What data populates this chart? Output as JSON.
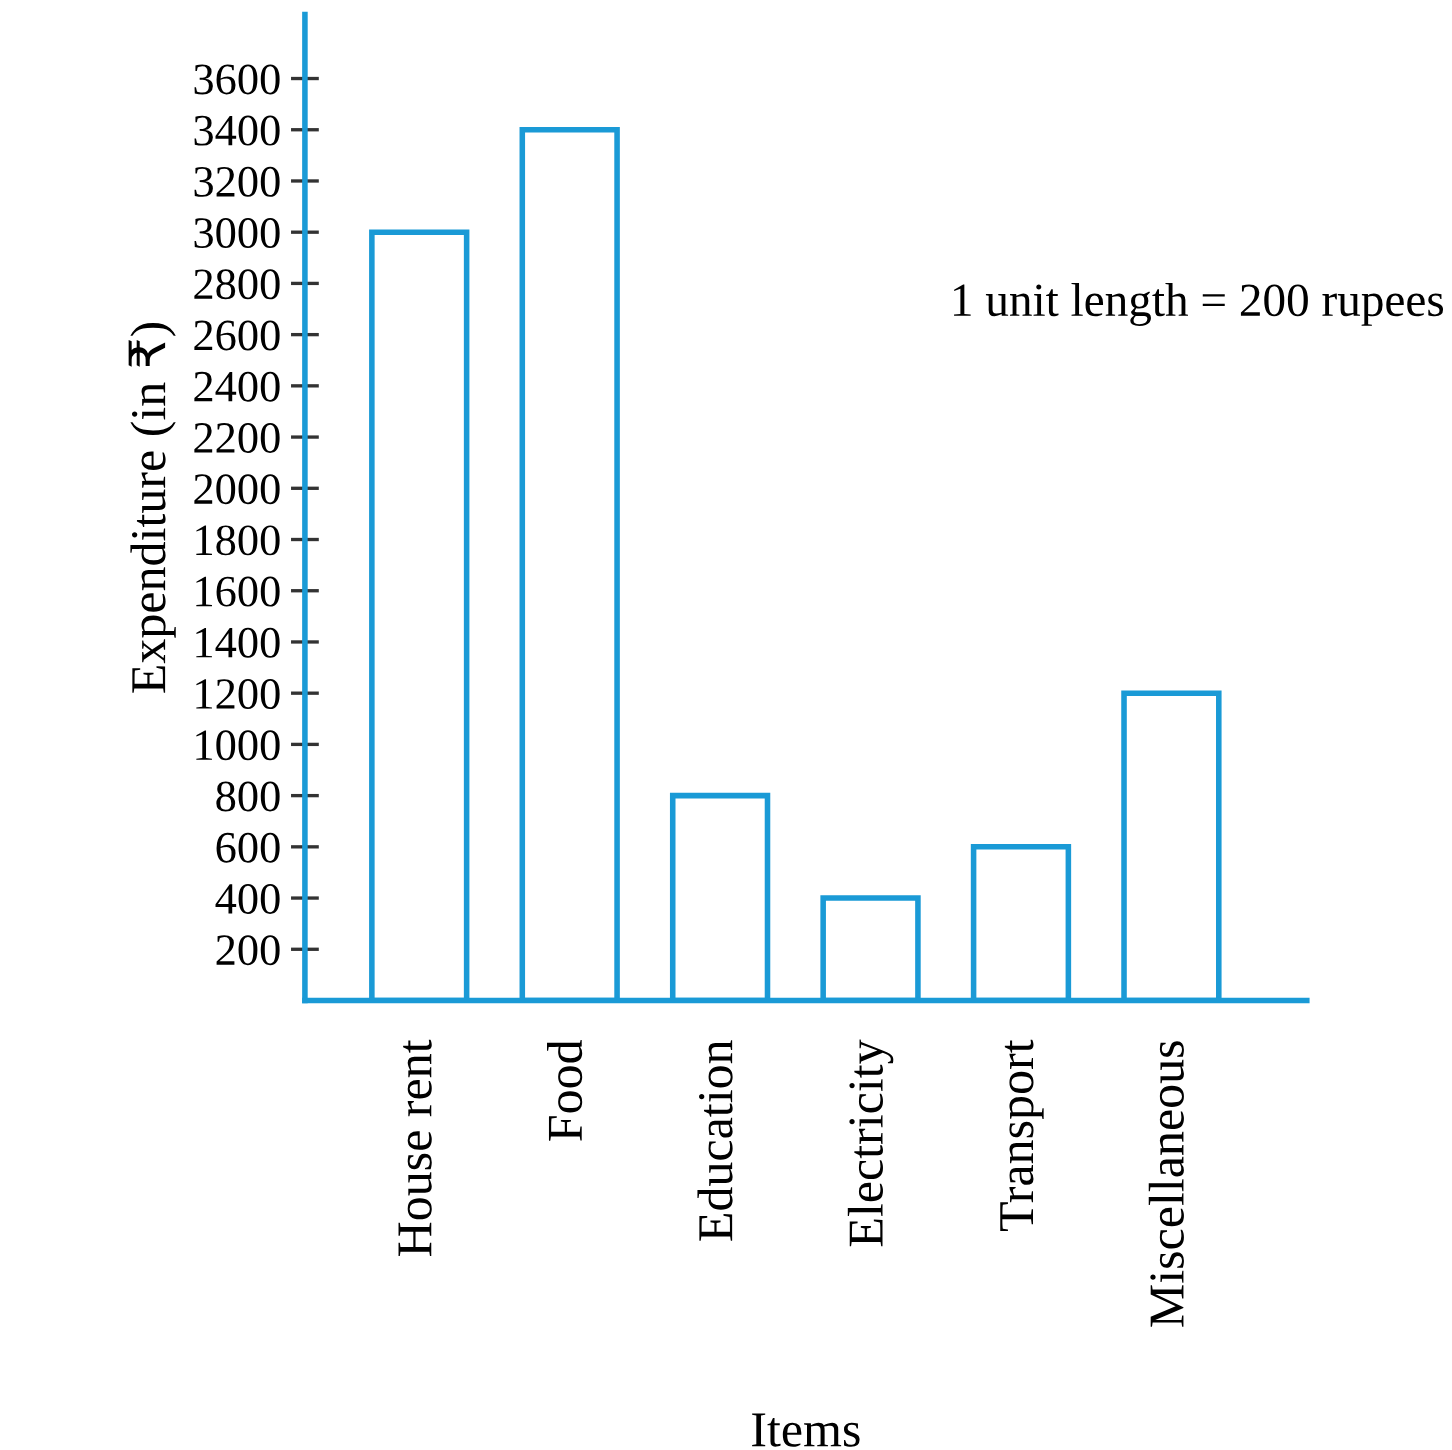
{
  "chart_data": {
    "type": "bar",
    "ylabel": "Expenditure (in ₹)",
    "xlabel": "Items",
    "categories": [
      "House rent",
      "Food",
      "Education",
      "Electricity",
      "Transport",
      "Miscellaneous"
    ],
    "values": [
      3000,
      3400,
      800,
      400,
      600,
      1200
    ],
    "color": "#1a9ad6",
    "ylim": [
      0,
      3850
    ],
    "yticks": [
      200,
      400,
      600,
      800,
      1000,
      1200,
      1400,
      1600,
      1800,
      2000,
      2200,
      2400,
      2600,
      2800,
      3000,
      3200,
      3400,
      3600
    ],
    "grid": false,
    "legend": false,
    "annotations": [
      "1 unit length = 200 rupees"
    ]
  }
}
